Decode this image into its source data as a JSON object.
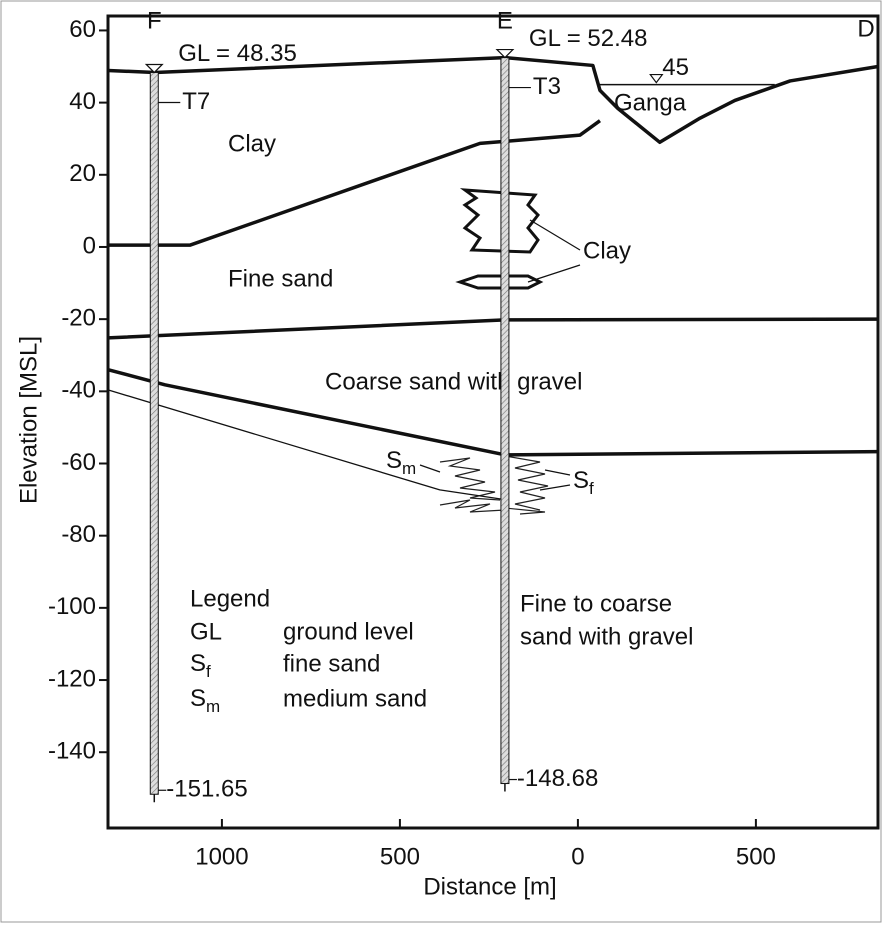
{
  "chart_data": {
    "type": "section",
    "xlabel": "Distance [m]",
    "ylabel": "Elevation [MSL]",
    "xlim": [
      -1320,
      843
    ],
    "ylim": [
      -161,
      64
    ],
    "xticks": [
      {
        "value": -1000,
        "label": "1000"
      },
      {
        "value": -500,
        "label": "500"
      },
      0,
      500
    ],
    "yticks": [
      60,
      40,
      20,
      0,
      -20,
      -40,
      -60,
      -80,
      -100,
      -120,
      -140
    ],
    "section_end": "D",
    "boreholes": [
      {
        "name": "F",
        "id": "T7",
        "x": -1190,
        "gl": 48.35,
        "gl_label": "GL = 48.35",
        "bottom": -151.65
      },
      {
        "name": "E",
        "id": "T3",
        "x": -205,
        "gl": 52.48,
        "gl_label": "GL = 52.48",
        "bottom": -148.68
      }
    ],
    "boundaries": [
      {
        "x": [
          -1320,
          -1188,
          -205,
          42,
          62,
          112,
          230,
          343,
          441,
          596,
          843
        ],
        "values": [
          48.9,
          48.35,
          52.48,
          50.3,
          43.4,
          38.4,
          29,
          35.7,
          40.6,
          46,
          50
        ]
      },
      {
        "x": [
          -1320,
          -1090,
          -275,
          6,
          62
        ],
        "values": [
          0.5,
          0.5,
          28.7,
          31,
          35
        ]
      },
      {
        "x": [
          -1320,
          -205,
          843
        ],
        "values": [
          -25.2,
          -20.2,
          -20
        ]
      },
      {
        "x": [
          -1320,
          -1160,
          -205,
          843
        ],
        "values": [
          -34,
          -38.2,
          -57.6,
          -56.7
        ]
      },
      {
        "x": [
          -1320,
          -388,
          -205
        ],
        "values": [
          -39.6,
          -67.3,
          -70
        ]
      }
    ],
    "water_level": {
      "x": [
        56,
        553
      ],
      "value": 45
    },
    "annotations": [
      "Clay",
      "Fine sand",
      "Coarse sand with gravel",
      "Ganga",
      "Clay",
      "Fine to coarse",
      "sand with gravel"
    ],
    "strata_marks": [
      {
        "symbol": "S",
        "sub": "m"
      },
      {
        "symbol": "S",
        "sub": "f"
      }
    ],
    "legend": {
      "title": "Legend",
      "entries": [
        {
          "symbol": "GL",
          "text": "ground level"
        },
        {
          "symbol": "S",
          "sub": "f",
          "text": "fine sand"
        },
        {
          "symbol": "S",
          "sub": "m",
          "text": "medium sand"
        }
      ]
    }
  }
}
